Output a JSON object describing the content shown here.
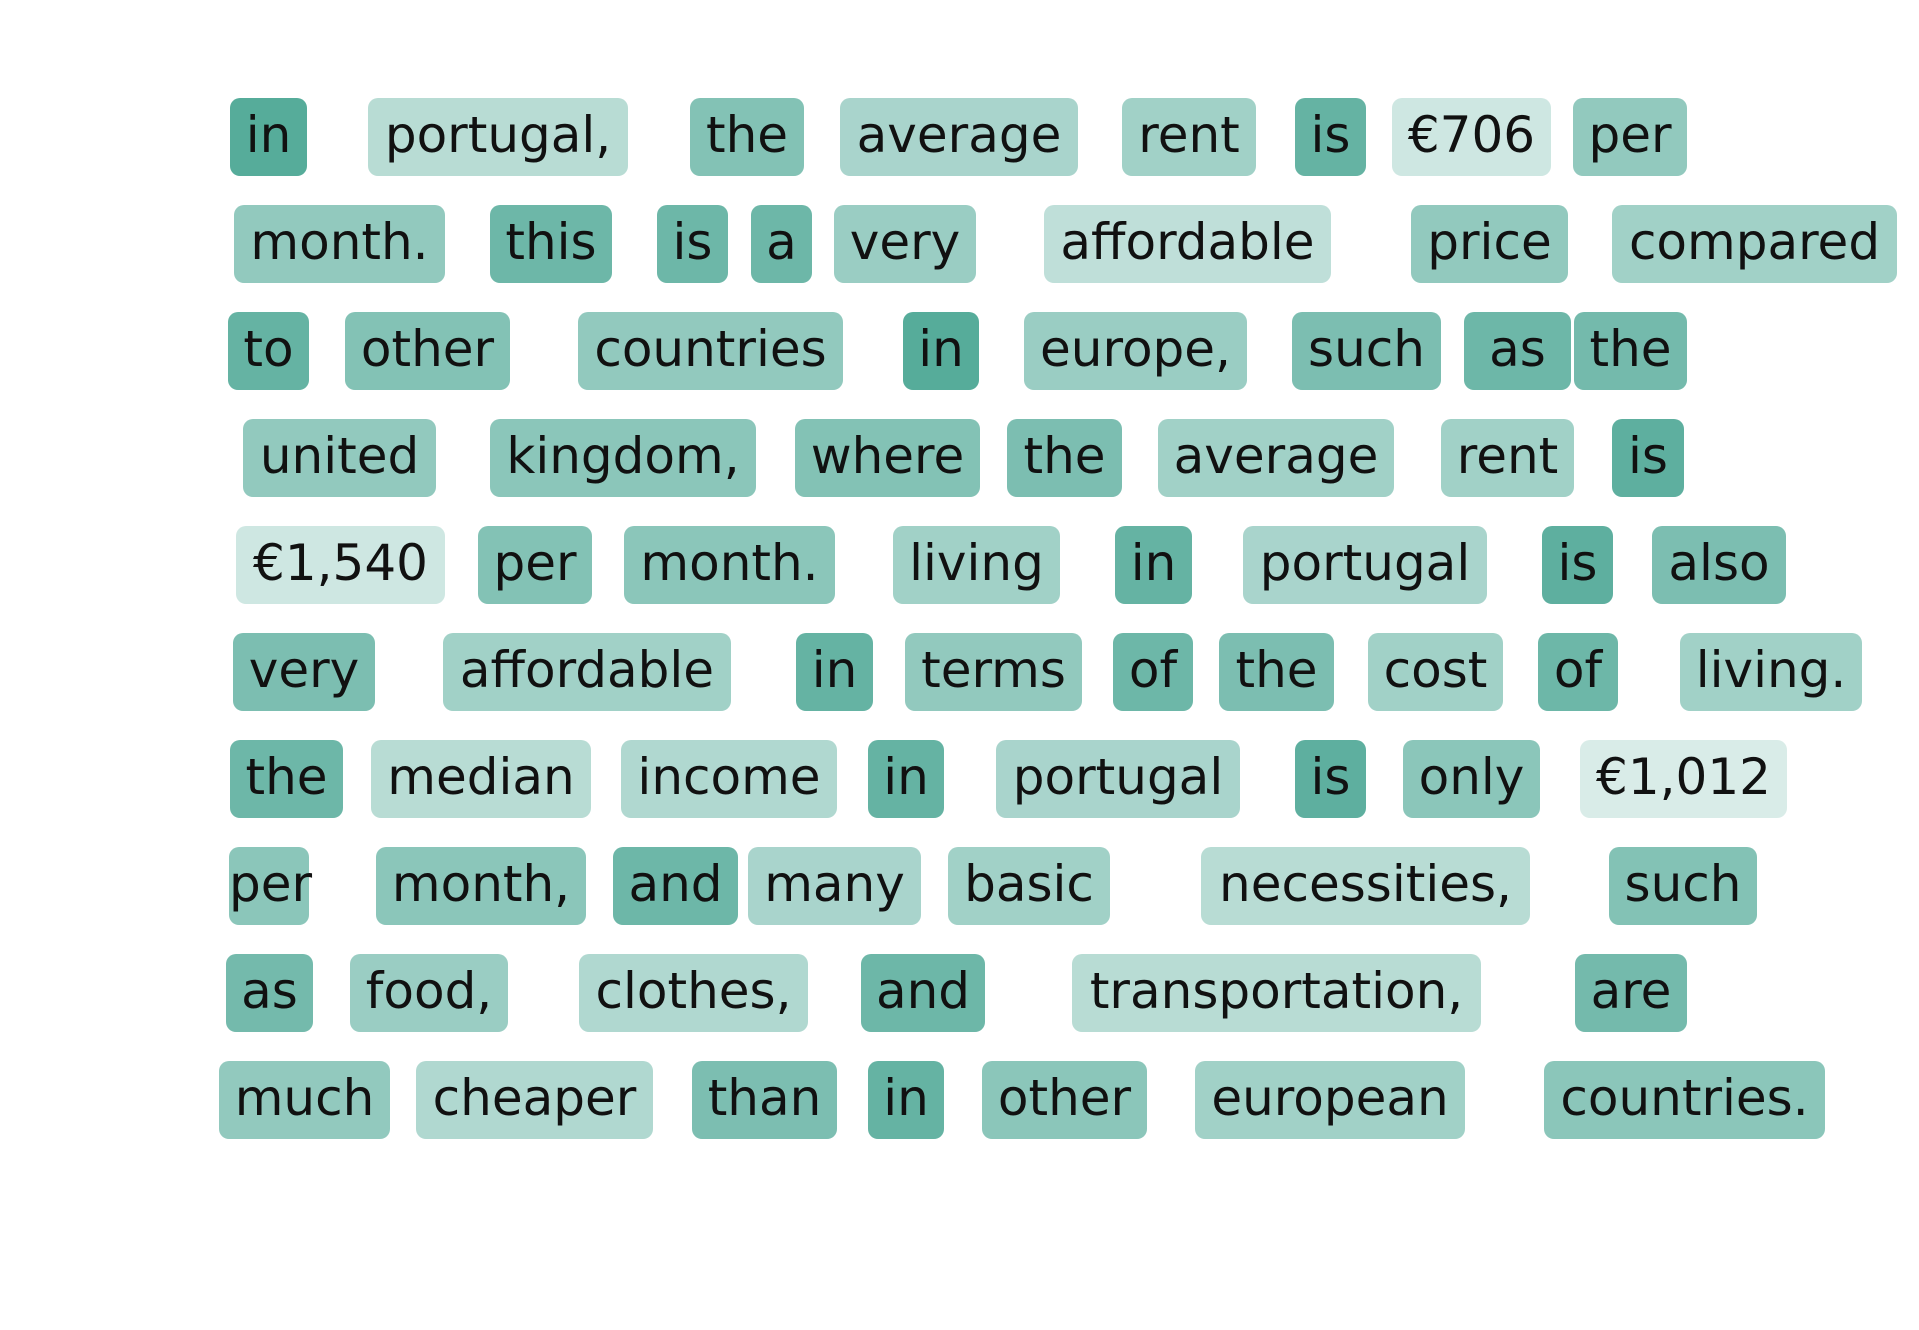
{
  "palette": {
    "low": "#ffffff",
    "high": "#4fa896"
  },
  "tokens": [
    [
      {
        "text": "in",
        "weight": 0.95
      },
      {
        "text": "portugal,",
        "weight": 0.3
      },
      {
        "text": "the",
        "weight": 0.65
      },
      {
        "text": "average",
        "weight": 0.4
      },
      {
        "text": "rent",
        "weight": 0.45
      },
      {
        "text": "is",
        "weight": 0.85
      },
      {
        "text": "€706",
        "weight": 0.15
      },
      {
        "text": "per",
        "weight": 0.55
      }
    ],
    [
      {
        "text": "month.",
        "weight": 0.55
      },
      {
        "text": "this",
        "weight": 0.8
      },
      {
        "text": "is",
        "weight": 0.8
      },
      {
        "text": "a",
        "weight": 0.8
      },
      {
        "text": "very",
        "weight": 0.5
      },
      {
        "text": "affordable",
        "weight": 0.25
      },
      {
        "text": "price",
        "weight": 0.55
      },
      {
        "text": "compared",
        "weight": 0.45
      }
    ],
    [
      {
        "text": "to",
        "weight": 0.85
      },
      {
        "text": "other",
        "weight": 0.65
      },
      {
        "text": "countries",
        "weight": 0.55
      },
      {
        "text": "in",
        "weight": 0.95
      },
      {
        "text": "europe,",
        "weight": 0.5
      },
      {
        "text": "such",
        "weight": 0.7
      },
      {
        "text": "as",
        "weight": 0.8
      },
      {
        "text": "the",
        "weight": 0.75
      }
    ],
    [
      {
        "text": "united",
        "weight": 0.55
      },
      {
        "text": "kingdom,",
        "weight": 0.6
      },
      {
        "text": "where",
        "weight": 0.65
      },
      {
        "text": "the",
        "weight": 0.7
      },
      {
        "text": "average",
        "weight": 0.45
      },
      {
        "text": "rent",
        "weight": 0.45
      },
      {
        "text": "is",
        "weight": 0.9
      }
    ],
    [
      {
        "text": "€1,540",
        "weight": 0.15
      },
      {
        "text": "per",
        "weight": 0.65
      },
      {
        "text": "month.",
        "weight": 0.6
      },
      {
        "text": "living",
        "weight": 0.45
      },
      {
        "text": "in",
        "weight": 0.85
      },
      {
        "text": "portugal",
        "weight": 0.4
      },
      {
        "text": "is",
        "weight": 0.9
      },
      {
        "text": "also",
        "weight": 0.7
      }
    ],
    [
      {
        "text": "very",
        "weight": 0.7
      },
      {
        "text": "affordable",
        "weight": 0.45
      },
      {
        "text": "in",
        "weight": 0.85
      },
      {
        "text": "terms",
        "weight": 0.55
      },
      {
        "text": "of",
        "weight": 0.8
      },
      {
        "text": "the",
        "weight": 0.7
      },
      {
        "text": "cost",
        "weight": 0.45
      },
      {
        "text": "of",
        "weight": 0.8
      },
      {
        "text": "living.",
        "weight": 0.45
      }
    ],
    [
      {
        "text": "the",
        "weight": 0.8
      },
      {
        "text": "median",
        "weight": 0.3
      },
      {
        "text": "income",
        "weight": 0.35
      },
      {
        "text": "in",
        "weight": 0.85
      },
      {
        "text": "portugal",
        "weight": 0.4
      },
      {
        "text": "is",
        "weight": 0.9
      },
      {
        "text": "only",
        "weight": 0.6
      },
      {
        "text": "€1,012",
        "weight": 0.08
      }
    ],
    [
      {
        "text": "per",
        "weight": 0.6
      },
      {
        "text": "month,",
        "weight": 0.6
      },
      {
        "text": "and",
        "weight": 0.8
      },
      {
        "text": "many",
        "weight": 0.4
      },
      {
        "text": "basic",
        "weight": 0.45
      },
      {
        "text": "necessities,",
        "weight": 0.3
      },
      {
        "text": "such",
        "weight": 0.65
      }
    ],
    [
      {
        "text": "as",
        "weight": 0.75
      },
      {
        "text": "food,",
        "weight": 0.5
      },
      {
        "text": "clothes,",
        "weight": 0.35
      },
      {
        "text": "and",
        "weight": 0.8
      },
      {
        "text": "transportation,",
        "weight": 0.3
      },
      {
        "text": "are",
        "weight": 0.75
      }
    ],
    [
      {
        "text": "much",
        "weight": 0.55
      },
      {
        "text": "cheaper",
        "weight": 0.35
      },
      {
        "text": "than",
        "weight": 0.7
      },
      {
        "text": "in",
        "weight": 0.85
      },
      {
        "text": "other",
        "weight": 0.6
      },
      {
        "text": "european",
        "weight": 0.45
      },
      {
        "text": "countries.",
        "weight": 0.6
      }
    ]
  ]
}
